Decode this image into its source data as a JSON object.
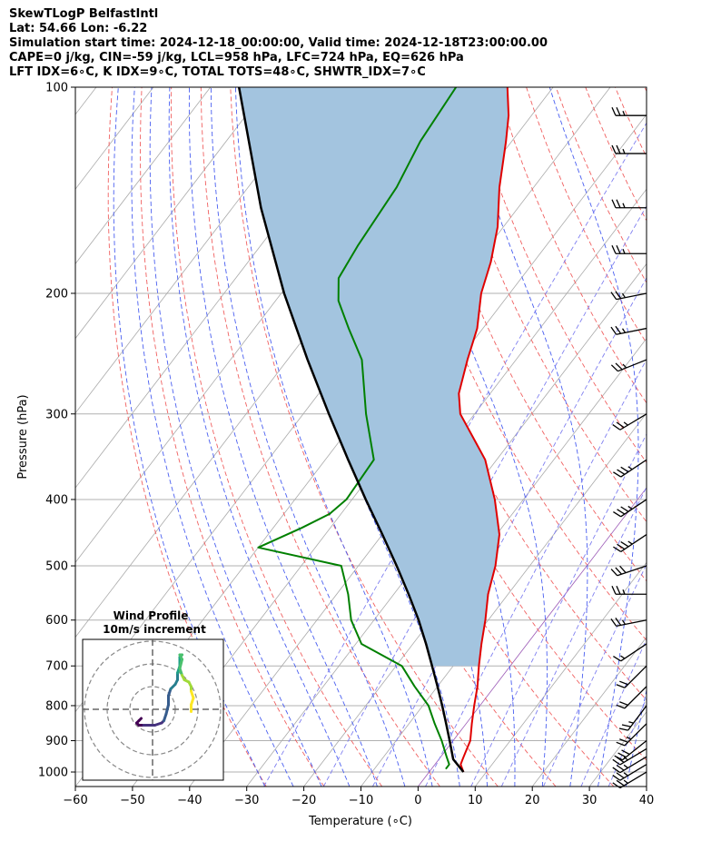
{
  "header": {
    "line1": "SkewTLogP BelfastIntl",
    "line2": "Lat: 54.66   Lon: -6.22",
    "line3": "Simulation start time: 2024-12-18_00:00:00, Valid time: 2024-12-18T23:00:00.00",
    "line4": "CAPE=0 j/kg, CIN=-59 j/kg, LCL=958 hPa, LFC=724 hPa, EQ=626 hPa",
    "line5": "LFT IDX=6∘C, K IDX=9∘C, TOTAL TOTS=48∘C, SHWTR_IDX=7∘C"
  },
  "chart_data": {
    "type": "skewt",
    "xlabel": "Temperature (∘C)",
    "ylabel": "Pressure (hPa)",
    "xlim": [
      -60,
      40
    ],
    "ylim": [
      1050,
      100
    ],
    "x_ticks": [
      "−60",
      "−50",
      "−40",
      "−30",
      "−20",
      "−10",
      "0",
      "10",
      "20",
      "30",
      "40"
    ],
    "x_tick_values": [
      -60,
      -50,
      -40,
      -30,
      -20,
      -10,
      0,
      10,
      20,
      30,
      40
    ],
    "y_ticks": [
      "100",
      "200",
      "300",
      "400",
      "500",
      "600",
      "700",
      "800",
      "900",
      "1000"
    ],
    "y_tick_values": [
      100,
      200,
      300,
      400,
      500,
      600,
      700,
      800,
      900,
      1000
    ],
    "grid": true,
    "colors": {
      "temperature": "#e00000",
      "dewpoint": "#008000",
      "parcel": "#000000",
      "cape_fill": "#a3c4df",
      "dry_adiabat": "#f06060",
      "moist_adiabat": "#4a5ff0",
      "mixing_ratio": "#7f7ff0",
      "isotherm_zero": "#9b59b6",
      "isotherm": "#aaaaaa"
    },
    "temperature_profile": [
      {
        "p": 1000,
        "t": 6.0
      },
      {
        "p": 975,
        "t": 4.5
      },
      {
        "p": 950,
        "t": 4.0
      },
      {
        "p": 900,
        "t": 3.0
      },
      {
        "p": 850,
        "t": 1.0
      },
      {
        "p": 800,
        "t": -1.0
      },
      {
        "p": 750,
        "t": -3.0
      },
      {
        "p": 700,
        "t": -5.5
      },
      {
        "p": 650,
        "t": -8.0
      },
      {
        "p": 600,
        "t": -10.5
      },
      {
        "p": 550,
        "t": -13.5
      },
      {
        "p": 500,
        "t": -16.0
      },
      {
        "p": 450,
        "t": -19.5
      },
      {
        "p": 400,
        "t": -25.0
      },
      {
        "p": 350,
        "t": -32.0
      },
      {
        "p": 330,
        "t": -36.0
      },
      {
        "p": 300,
        "t": -42.5
      },
      {
        "p": 280,
        "t": -45.5
      },
      {
        "p": 250,
        "t": -48.5
      },
      {
        "p": 225,
        "t": -51.0
      },
      {
        "p": 200,
        "t": -55.0
      },
      {
        "p": 180,
        "t": -57.5
      },
      {
        "p": 160,
        "t": -61.0
      },
      {
        "p": 140,
        "t": -66.0
      },
      {
        "p": 120,
        "t": -71.0
      },
      {
        "p": 110,
        "t": -74.0
      },
      {
        "p": 100,
        "t": -78.0
      }
    ],
    "dewpoint_profile": [
      {
        "p": 990,
        "t": 2.5
      },
      {
        "p": 975,
        "t": 2.5
      },
      {
        "p": 950,
        "t": 1.0
      },
      {
        "p": 900,
        "t": -2.0
      },
      {
        "p": 850,
        "t": -5.5
      },
      {
        "p": 800,
        "t": -9.0
      },
      {
        "p": 750,
        "t": -14.0
      },
      {
        "p": 700,
        "t": -19.0
      },
      {
        "p": 650,
        "t": -29.0
      },
      {
        "p": 600,
        "t": -34.0
      },
      {
        "p": 550,
        "t": -38.0
      },
      {
        "p": 500,
        "t": -43.0
      },
      {
        "p": 470,
        "t": -60.0
      },
      {
        "p": 440,
        "t": -55.0
      },
      {
        "p": 420,
        "t": -52.0
      },
      {
        "p": 400,
        "t": -51.0
      },
      {
        "p": 350,
        "t": -51.5
      },
      {
        "p": 300,
        "t": -59.0
      },
      {
        "p": 250,
        "t": -67.0
      },
      {
        "p": 225,
        "t": -73.5
      },
      {
        "p": 205,
        "t": -79.0
      },
      {
        "p": 190,
        "t": -82.0
      },
      {
        "p": 170,
        "t": -83.0
      },
      {
        "p": 140,
        "t": -84.0
      },
      {
        "p": 120,
        "t": -86.0
      },
      {
        "p": 100,
        "t": -87.0
      }
    ],
    "parcel_profile": [
      {
        "p": 1000,
        "t": 6.0
      },
      {
        "p": 958,
        "t": 2.5
      },
      {
        "p": 900,
        "t": -0.6
      },
      {
        "p": 850,
        "t": -3.5
      },
      {
        "p": 800,
        "t": -6.6
      },
      {
        "p": 750,
        "t": -10.0
      },
      {
        "p": 700,
        "t": -13.7
      },
      {
        "p": 650,
        "t": -17.7
      },
      {
        "p": 600,
        "t": -22.2
      },
      {
        "p": 550,
        "t": -27.4
      },
      {
        "p": 500,
        "t": -33.3
      },
      {
        "p": 450,
        "t": -40.0
      },
      {
        "p": 400,
        "t": -47.6
      },
      {
        "p": 350,
        "t": -56.0
      },
      {
        "p": 300,
        "t": -65.5
      },
      {
        "p": 250,
        "t": -76.5
      },
      {
        "p": 200,
        "t": -89.5
      },
      {
        "p": 150,
        "t": -105.0
      },
      {
        "p": 100,
        "t": -125.0
      }
    ],
    "wind_barbs": [
      {
        "p": 1000,
        "u": 5,
        "v": 3
      },
      {
        "p": 975,
        "u": 5,
        "v": 3
      },
      {
        "p": 950,
        "u": 5,
        "v": 3
      },
      {
        "p": 925,
        "u": 5,
        "v": 3
      },
      {
        "p": 900,
        "u": 5,
        "v": 4
      },
      {
        "p": 850,
        "u": 4,
        "v": 4
      },
      {
        "p": 800,
        "u": 3,
        "v": 4
      },
      {
        "p": 750,
        "u": 3,
        "v": 3
      },
      {
        "p": 700,
        "u": 3,
        "v": 3
      },
      {
        "p": 650,
        "u": 3,
        "v": 2
      },
      {
        "p": 600,
        "u": 5,
        "v": 1
      },
      {
        "p": 550,
        "u": 5,
        "v": 0
      },
      {
        "p": 500,
        "u": 6,
        "v": 2
      },
      {
        "p": 450,
        "u": 6,
        "v": 4
      },
      {
        "p": 400,
        "u": 6,
        "v": 4
      },
      {
        "p": 350,
        "u": 6,
        "v": 4
      },
      {
        "p": 300,
        "u": 5,
        "v": 3
      },
      {
        "p": 250,
        "u": 5,
        "v": 2
      },
      {
        "p": 225,
        "u": 5,
        "v": 1
      },
      {
        "p": 200,
        "u": 5,
        "v": 1
      },
      {
        "p": 175,
        "u": 5,
        "v": 0
      },
      {
        "p": 150,
        "u": 5,
        "v": 0
      },
      {
        "p": 125,
        "u": 5,
        "v": 0
      },
      {
        "p": 110,
        "u": 5,
        "v": 0
      }
    ],
    "inset": {
      "title_line1": "Wind Profile",
      "title_line2": "10m/s increment",
      "hodograph": [
        [
          -5,
          4
        ],
        [
          -6,
          5
        ],
        [
          -7,
          6
        ],
        [
          -6,
          7
        ],
        [
          -4,
          7
        ],
        [
          -1,
          7
        ],
        [
          1,
          7
        ],
        [
          4,
          6
        ],
        [
          5,
          5
        ],
        [
          6,
          2
        ],
        [
          7,
          -2
        ],
        [
          7,
          -6
        ],
        [
          8,
          -9
        ],
        [
          10,
          -11
        ],
        [
          11,
          -13
        ],
        [
          11,
          -16
        ],
        [
          12,
          -19
        ],
        [
          12,
          -21
        ],
        [
          12,
          -23
        ],
        [
          13,
          -24
        ],
        [
          12,
          -24
        ],
        [
          13,
          -22
        ],
        [
          12,
          -18
        ],
        [
          13,
          -15
        ],
        [
          14,
          -13
        ],
        [
          16,
          -12
        ],
        [
          17,
          -10
        ],
        [
          17,
          -8
        ],
        [
          18,
          -5
        ],
        [
          17,
          -2
        ],
        [
          17,
          1
        ]
      ]
    }
  }
}
